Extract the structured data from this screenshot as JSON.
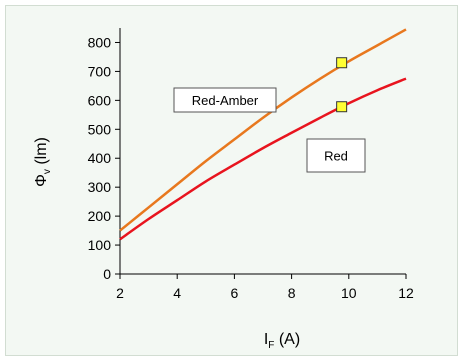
{
  "chart_data": {
    "type": "line",
    "xlabel": {
      "main": "I",
      "sub": "F",
      "unit": " (A)"
    },
    "ylabel": {
      "main": "Φ",
      "sub": "v",
      "unit": " (lm)"
    },
    "xlim": [
      2,
      12
    ],
    "ylim": [
      0,
      850
    ],
    "xticks": [
      2,
      4,
      6,
      8,
      10,
      12
    ],
    "yticks": [
      0,
      100,
      200,
      300,
      400,
      500,
      600,
      700,
      800
    ],
    "grid": false,
    "series": [
      {
        "name": "Red-Amber",
        "color": "#e8781e",
        "x": [
          2,
          3,
          4,
          5,
          6,
          7,
          8,
          9,
          10,
          11,
          12
        ],
        "y": [
          150,
          230,
          310,
          390,
          465,
          540,
          610,
          675,
          735,
          790,
          845
        ]
      },
      {
        "name": "Red",
        "color": "#e8141e",
        "x": [
          2,
          3,
          4,
          5,
          6,
          7,
          8,
          9,
          10,
          11,
          12
        ],
        "y": [
          120,
          190,
          255,
          320,
          378,
          435,
          488,
          540,
          590,
          635,
          675
        ]
      }
    ],
    "markers": [
      {
        "x": 9.75,
        "y": 730,
        "color": "#ffff33"
      },
      {
        "x": 9.75,
        "y": 578,
        "color": "#ffff33"
      }
    ],
    "callouts": [
      {
        "text": "Red-Amber",
        "series": "Red-Amber"
      },
      {
        "text": "Red",
        "series": "Red"
      }
    ]
  }
}
